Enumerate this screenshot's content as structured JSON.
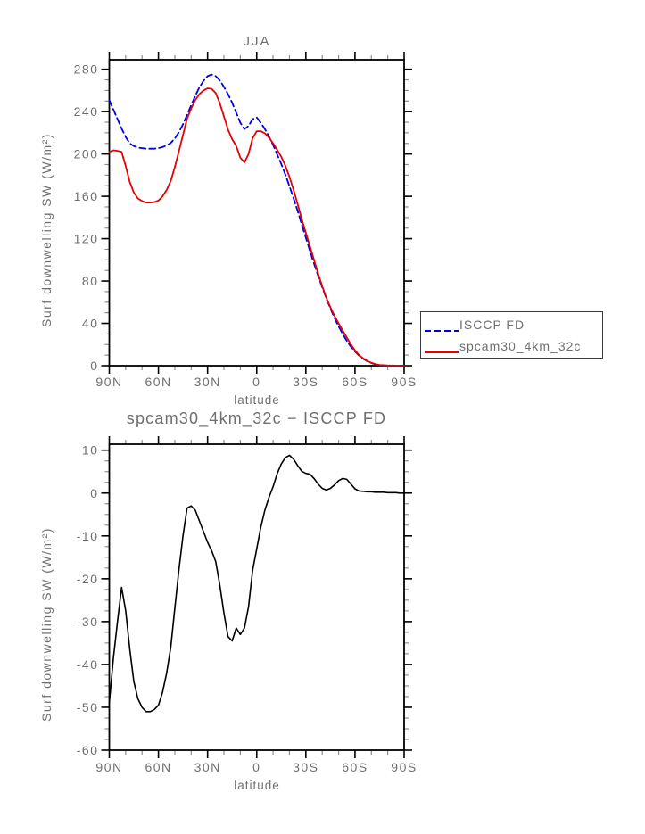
{
  "page": {
    "background": "#ffffff"
  },
  "legend": {
    "entries": [
      {
        "label": "ISCCP FD"
      },
      {
        "label": "spcam30_4km_32c"
      }
    ]
  },
  "chart_data": [
    {
      "type": "line",
      "title": "JJA",
      "xlabel": "latitude",
      "ylabel": "Surf downwelling SW (W/m²)",
      "xlim": [
        90,
        -90
      ],
      "ylim": [
        0,
        289
      ],
      "y_ticks": [
        0,
        40,
        80,
        120,
        160,
        200,
        240,
        280
      ],
      "y_minor_step": 10,
      "x_ticks": {
        "lats": [
          90,
          60,
          30,
          0,
          -30,
          -60,
          -90
        ],
        "labels": [
          "90N",
          "60N",
          "30N",
          "0",
          "30S",
          "60S",
          "90S"
        ]
      },
      "x_minor_step": 10,
      "legend_position": "right",
      "grid": false,
      "x": [
        90,
        87.5,
        85,
        82.5,
        80,
        77.5,
        75,
        72.5,
        70,
        67.5,
        65,
        62.5,
        60,
        57.5,
        55,
        52.5,
        50,
        47.5,
        45,
        42.5,
        40,
        37.5,
        35,
        32.5,
        30,
        27.5,
        25,
        22.5,
        20,
        17.5,
        15,
        12.5,
        10,
        7.5,
        5,
        2.5,
        0,
        -2.5,
        -5,
        -7.5,
        -10,
        -12.5,
        -15,
        -17.5,
        -20,
        -22.5,
        -25,
        -27.5,
        -30,
        -32.5,
        -35,
        -37.5,
        -40,
        -42.5,
        -45,
        -47.5,
        -50,
        -52.5,
        -55,
        -57.5,
        -60,
        -62.5,
        -65,
        -67.5,
        -70,
        -72.5,
        -75,
        -77.5,
        -80,
        -82.5,
        -85,
        -87.5,
        -90
      ],
      "series": [
        {
          "name": "ISCCP FD",
          "color": "#0000e0",
          "dash": "7,4",
          "width": 1.8,
          "values": [
            251,
            242,
            233,
            224,
            216,
            210,
            207.5,
            206,
            205.5,
            205,
            205,
            205,
            205.5,
            206.5,
            208,
            210.5,
            214.5,
            220.5,
            228,
            237,
            246,
            255,
            263,
            269,
            273.5,
            275,
            273.5,
            269.5,
            263.5,
            256.5,
            248.5,
            239,
            229.5,
            223.5,
            226.5,
            233,
            234.5,
            229.5,
            223.5,
            216.5,
            208.5,
            199.5,
            190.5,
            180.5,
            169.5,
            158,
            146,
            133.5,
            121,
            108.5,
            96.5,
            85,
            74,
            63.5,
            54,
            45,
            37,
            30,
            23.5,
            18,
            13.5,
            9.5,
            6.5,
            4.2,
            2.5,
            1.3,
            0.6,
            0.3,
            0.1,
            0.1,
            0,
            0,
            0
          ]
        },
        {
          "name": "spcam30_4km_32c",
          "color": "#e80000",
          "dash": null,
          "width": 1.8,
          "values": [
            202,
            203.5,
            203,
            202,
            188.5,
            173.5,
            163.5,
            158,
            155.5,
            154,
            154,
            154.5,
            156,
            160,
            166,
            174.5,
            187.5,
            202.5,
            218,
            233.5,
            243,
            251,
            256.5,
            260,
            262,
            261.5,
            257.5,
            248,
            235.5,
            223,
            214,
            207.5,
            196.5,
            192,
            200,
            215,
            221.5,
            221.5,
            219.5,
            215.5,
            210,
            204,
            197.3,
            188.8,
            178.3,
            165.9,
            152.4,
            138.6,
            125.6,
            112.9,
            99.9,
            87.1,
            75.1,
            64.2,
            55.1,
            46.9,
            39.9,
            33.4,
            26.7,
            20.1,
            14.5,
            10,
            6.9,
            4.5,
            2.8,
            1.5,
            0.8,
            0.5,
            0.2,
            0.2,
            0.1,
            0,
            0
          ]
        }
      ]
    },
    {
      "type": "line",
      "title": "spcam30_4km_32c − ISCCP FD",
      "xlabel": "latitude",
      "ylabel": "Surf downwelling SW (W/m²)",
      "xlim": [
        90,
        -90
      ],
      "ylim": [
        -60,
        11.4
      ],
      "y_ticks": [
        -60,
        -50,
        -40,
        -30,
        -20,
        -10,
        0,
        10
      ],
      "y_minor_step": 2.5,
      "x_ticks": {
        "lats": [
          90,
          60,
          30,
          0,
          -30,
          -60,
          -90
        ],
        "labels": [
          "90N",
          "60N",
          "30N",
          "0",
          "30S",
          "60S",
          "90S"
        ]
      },
      "x_minor_step": 10,
      "grid": false,
      "x": [
        90,
        87.5,
        85,
        82.5,
        80,
        77.5,
        75,
        72.5,
        70,
        67.5,
        65,
        62.5,
        60,
        57.5,
        55,
        52.5,
        50,
        47.5,
        45,
        42.5,
        40,
        37.5,
        35,
        32.5,
        30,
        27.5,
        25,
        22.5,
        20,
        17.5,
        15,
        12.5,
        10,
        7.5,
        5,
        2.5,
        0,
        -2.5,
        -5,
        -7.5,
        -10,
        -12.5,
        -15,
        -17.5,
        -20,
        -22.5,
        -25,
        -27.5,
        -30,
        -32.5,
        -35,
        -37.5,
        -40,
        -42.5,
        -45,
        -47.5,
        -50,
        -52.5,
        -55,
        -57.5,
        -60,
        -62.5,
        -65,
        -67.5,
        -70,
        -72.5,
        -75,
        -77.5,
        -80,
        -82.5,
        -85,
        -87.5,
        -90
      ],
      "series": [
        {
          "name": "spcam30_4km_32c - ISCCP FD",
          "color": "#000000",
          "dash": null,
          "width": 1.6,
          "values": [
            -49,
            -38.5,
            -30,
            -22,
            -27.5,
            -36.5,
            -44,
            -48,
            -50,
            -51,
            -51,
            -50.5,
            -49.5,
            -46.5,
            -42,
            -36,
            -27,
            -18,
            -10,
            -3.5,
            -3,
            -4,
            -6.5,
            -9,
            -11.5,
            -13.5,
            -16,
            -21.5,
            -28,
            -33.5,
            -34.5,
            -31.5,
            -33,
            -31.5,
            -26.5,
            -18,
            -13,
            -8,
            -4,
            -1,
            1.5,
            4.5,
            6.8,
            8.3,
            8.8,
            7.9,
            6.4,
            5.1,
            4.6,
            4.4,
            3.4,
            2.1,
            1.1,
            0.7,
            1.1,
            1.9,
            2.9,
            3.4,
            3.2,
            2.1,
            1,
            0.5,
            0.4,
            0.3,
            0.3,
            0.2,
            0.2,
            0.2,
            0.1,
            0.1,
            0.1,
            0,
            0
          ]
        }
      ]
    }
  ]
}
